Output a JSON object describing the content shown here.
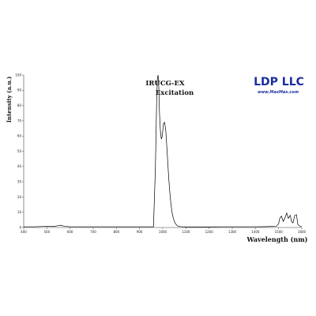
{
  "chart_data": {
    "type": "line",
    "title": "IRUCG-EX",
    "subtitle": "Excitation",
    "xlabel": "Wavelength (nm)",
    "ylabel": "Intensity (a.u.)",
    "xlim": [
      400,
      1600
    ],
    "ylim": [
      0,
      100
    ],
    "x_ticks": [
      400,
      500,
      600,
      700,
      800,
      900,
      1000,
      1100,
      1200,
      1300,
      1400,
      1500,
      1600
    ],
    "y_ticks": [
      0,
      10,
      20,
      30,
      40,
      50,
      60,
      70,
      80,
      90,
      100
    ],
    "grid": false,
    "legend": "none",
    "series": [
      {
        "color": "#000000",
        "x": [
          400,
          450,
          500,
          530,
          550,
          560,
          575,
          600,
          650,
          700,
          750,
          800,
          850,
          900,
          940,
          960,
          968,
          971,
          974,
          977,
          980,
          983,
          986,
          990,
          994,
          998,
          1003,
          1008,
          1013,
          1018,
          1022,
          1026,
          1030,
          1035,
          1040,
          1045,
          1050,
          1055,
          1060,
          1065,
          1070,
          1075,
          1080,
          1090,
          1100,
          1120,
          1150,
          1200,
          1250,
          1300,
          1350,
          1400,
          1450,
          1490,
          1500,
          1505,
          1512,
          1520,
          1528,
          1535,
          1542,
          1550,
          1556,
          1562,
          1570,
          1577,
          1583,
          1590,
          1596,
          1600
        ],
        "y": [
          0.5,
          0.5,
          0.8,
          0.7,
          1.2,
          1.5,
          0.8,
          0.5,
          0.5,
          0.5,
          0.5,
          0.5,
          0.5,
          0.5,
          0.5,
          0.5,
          37,
          60,
          85,
          98,
          100,
          92,
          75,
          63,
          58,
          60,
          68,
          69,
          64,
          52,
          42,
          32,
          24,
          16,
          10,
          6.5,
          4,
          2.5,
          1.6,
          1,
          0.8,
          0.6,
          0.5,
          0.5,
          0.4,
          0.4,
          0.4,
          0.4,
          0.5,
          0.5,
          0.5,
          0.5,
          0.6,
          0.8,
          2.5,
          6,
          7.5,
          4,
          6.5,
          9.5,
          6,
          8,
          4,
          3,
          8,
          8.5,
          2,
          1,
          0.8,
          0.5
        ]
      }
    ]
  },
  "logo": {
    "name": "LDP LLC",
    "url": "www.MaxMax.com"
  }
}
